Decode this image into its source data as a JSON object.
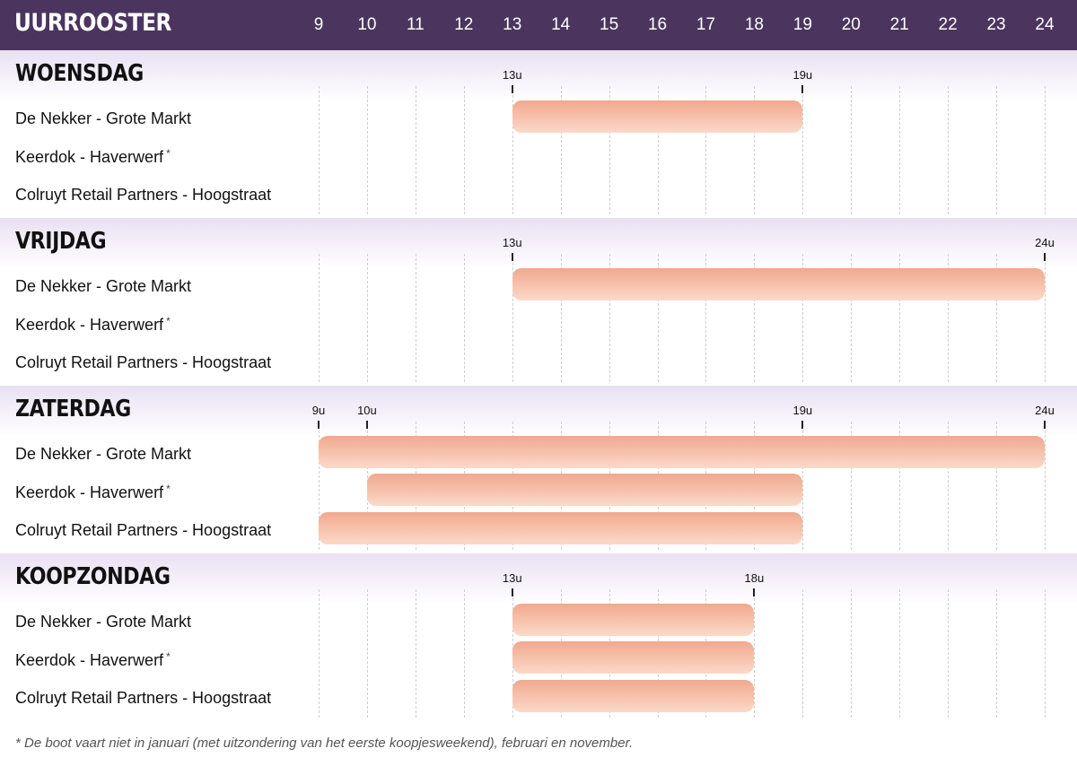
{
  "chart_data": {
    "type": "gantt",
    "title": "UURROOSTER",
    "hours": [
      9,
      10,
      11,
      12,
      13,
      14,
      15,
      16,
      17,
      18,
      19,
      20,
      21,
      22,
      23,
      24
    ],
    "xlim": [
      9,
      24
    ],
    "grid": true,
    "days": [
      {
        "name": "WOENSDAG",
        "tick_marks": [
          {
            "hour": 13,
            "label": "13u"
          },
          {
            "hour": 19,
            "label": "19u"
          }
        ],
        "rows": [
          {
            "label": "De Nekker - Grote Markt",
            "footnote_mark": "",
            "bars": [
              {
                "start": 13,
                "end": 19
              }
            ]
          },
          {
            "label": "Keerdok - Haverwerf",
            "footnote_mark": "*",
            "bars": []
          },
          {
            "label": "Colruyt Retail Partners - Hoogstraat",
            "footnote_mark": "",
            "bars": []
          }
        ]
      },
      {
        "name": "VRIJDAG",
        "tick_marks": [
          {
            "hour": 13,
            "label": "13u"
          },
          {
            "hour": 24,
            "label": "24u"
          }
        ],
        "rows": [
          {
            "label": "De Nekker - Grote Markt",
            "footnote_mark": "",
            "bars": [
              {
                "start": 13,
                "end": 24
              }
            ]
          },
          {
            "label": "Keerdok - Haverwerf",
            "footnote_mark": "*",
            "bars": []
          },
          {
            "label": "Colruyt Retail Partners - Hoogstraat",
            "footnote_mark": "",
            "bars": []
          }
        ]
      },
      {
        "name": "ZATERDAG",
        "tick_marks": [
          {
            "hour": 9,
            "label": "9u"
          },
          {
            "hour": 10,
            "label": "10u"
          },
          {
            "hour": 19,
            "label": "19u"
          },
          {
            "hour": 24,
            "label": "24u"
          }
        ],
        "rows": [
          {
            "label": "De Nekker - Grote Markt",
            "footnote_mark": "",
            "bars": [
              {
                "start": 9,
                "end": 24
              }
            ]
          },
          {
            "label": "Keerdok - Haverwerf",
            "footnote_mark": "*",
            "bars": [
              {
                "start": 10,
                "end": 19
              }
            ]
          },
          {
            "label": "Colruyt Retail Partners - Hoogstraat",
            "footnote_mark": "",
            "bars": [
              {
                "start": 9,
                "end": 19
              }
            ]
          }
        ]
      },
      {
        "name": "KOOPZONDAG",
        "tick_marks": [
          {
            "hour": 13,
            "label": "13u"
          },
          {
            "hour": 18,
            "label": "18u"
          }
        ],
        "rows": [
          {
            "label": "De Nekker - Grote Markt",
            "footnote_mark": "",
            "bars": [
              {
                "start": 13,
                "end": 18
              }
            ]
          },
          {
            "label": "Keerdok - Haverwerf",
            "footnote_mark": "*",
            "bars": [
              {
                "start": 13,
                "end": 18
              }
            ]
          },
          {
            "label": "Colruyt Retail Partners - Hoogstraat",
            "footnote_mark": "",
            "bars": [
              {
                "start": 13,
                "end": 18
              }
            ]
          }
        ]
      }
    ],
    "footnote": "* De boot vaart niet in januari (met uitzondering van het eerste koopjesweekend), februari en november."
  },
  "colors": {
    "header_bg": "#4b355f",
    "band_start": "#e9e0f2",
    "bar_dark": "#f0a88f",
    "bar_light": "#fbd9c9"
  }
}
